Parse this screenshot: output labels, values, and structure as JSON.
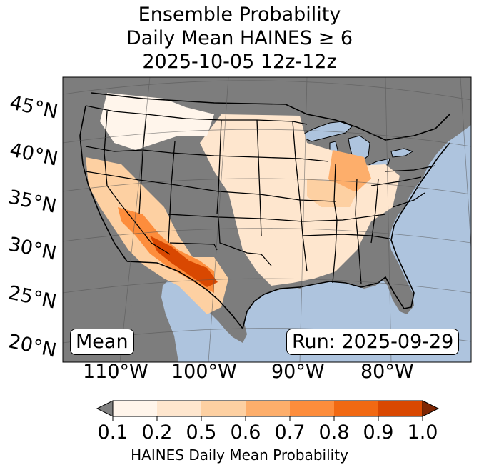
{
  "title": {
    "line1": "Ensemble Probability",
    "line2": "Daily Mean HAINES ≥ 6",
    "line3": "2025-10-05 12z-12z"
  },
  "map": {
    "ocean_color": "#aec4de",
    "land_no_data_color": "#7d7d7d",
    "lat_labels": [
      "45°N",
      "40°N",
      "35°N",
      "30°N",
      "25°N",
      "20°N"
    ],
    "lon_labels": [
      "110°W",
      "100°W",
      "90°W",
      "80°W"
    ],
    "mean_label": "Mean",
    "run_label": "Run: 2025-09-29"
  },
  "colorbar": {
    "title": "HAINES Daily Mean Probability",
    "tick_labels": [
      "0.1",
      "0.2",
      "0.5",
      "0.6",
      "0.7",
      "0.8",
      "0.9",
      "1.0"
    ],
    "under_color": "#808080",
    "over_color": "#7f2704",
    "colors": [
      "#fff5eb",
      "#fee6ce",
      "#fdd0a2",
      "#fdae6b",
      "#fd8d3c",
      "#f16913",
      "#d94801"
    ]
  }
}
